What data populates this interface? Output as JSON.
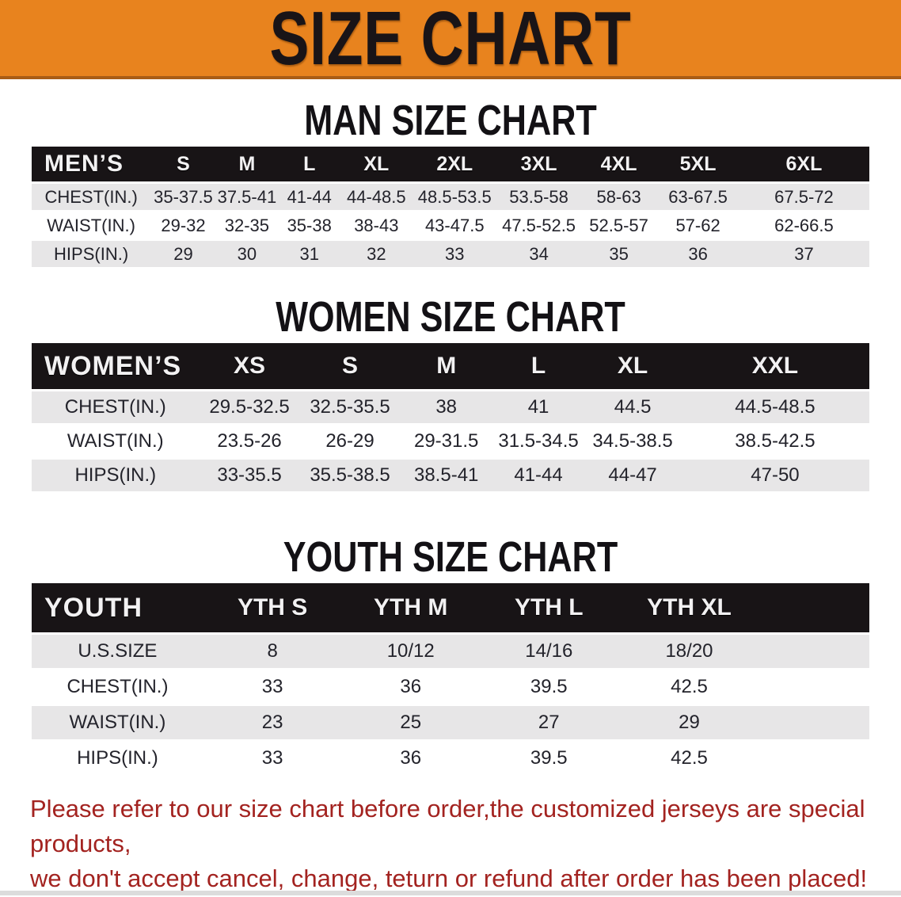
{
  "banner": {
    "title": "SIZE CHART"
  },
  "men_section": {
    "heading": "MAN SIZE CHART",
    "table": {
      "label": "MEN’S",
      "columns": [
        "S",
        "M",
        "L",
        "XL",
        "2XL",
        "3XL",
        "4XL",
        "5XL",
        "6XL"
      ],
      "rows": [
        {
          "label": "CHEST(IN.)",
          "values": [
            "35-37.5",
            "37.5-41",
            "41-44",
            "44-48.5",
            "48.5-53.5",
            "53.5-58",
            "58-63",
            "63-67.5",
            "67.5-72"
          ]
        },
        {
          "label": "WAIST(IN.)",
          "values": [
            "29-32",
            "32-35",
            "35-38",
            "38-43",
            "43-47.5",
            "47.5-52.5",
            "52.5-57",
            "57-62",
            "62-66.5"
          ]
        },
        {
          "label": "HIPS(IN.)",
          "values": [
            "29",
            "30",
            "31",
            "32",
            "33",
            "34",
            "35",
            "36",
            "37"
          ]
        }
      ]
    }
  },
  "women_section": {
    "heading": "WOMEN SIZE CHART",
    "table": {
      "label": "WOMEN’S",
      "columns": [
        "XS",
        "S",
        "M",
        "L",
        "XL",
        "XXL"
      ],
      "rows": [
        {
          "label": "CHEST(IN.)",
          "values": [
            "29.5-32.5",
            "32.5-35.5",
            "38",
            "41",
            "44.5",
            "44.5-48.5"
          ]
        },
        {
          "label": "WAIST(IN.)",
          "values": [
            "23.5-26",
            "26-29",
            "29-31.5",
            "31.5-34.5",
            "34.5-38.5",
            "38.5-42.5"
          ]
        },
        {
          "label": "HIPS(IN.)",
          "values": [
            "33-35.5",
            "35.5-38.5",
            "38.5-41",
            "41-44",
            "44-47",
            "47-50"
          ]
        }
      ]
    }
  },
  "youth_section": {
    "heading": "YOUTH SIZE CHART",
    "table": {
      "label": "YOUTH",
      "columns": [
        "YTH S",
        "YTH M",
        "YTH L",
        "YTH XL"
      ],
      "filler": true,
      "rows": [
        {
          "label": "U.S.SIZE",
          "values": [
            "8",
            "10/12",
            "14/16",
            "18/20"
          ]
        },
        {
          "label": "CHEST(IN.)",
          "values": [
            "33",
            "36",
            "39.5",
            "42.5"
          ]
        },
        {
          "label": "WAIST(IN.)",
          "values": [
            "23",
            "25",
            "27",
            "29"
          ]
        },
        {
          "label": "HIPS(IN.)",
          "values": [
            "33",
            "36",
            "39.5",
            "42.5"
          ]
        }
      ]
    }
  },
  "note": {
    "line1": "Please refer to our size chart before order,the customized jerseys are special products,",
    "line2": "we don't accept cancel, change, teturn or refund after order has been placed!"
  },
  "colors": {
    "banner-bg": "#E8831E",
    "banner-edge": "#A95C15",
    "table-header-bg": "#181416",
    "row-alt-bg": "#E7E6E7",
    "note-red": "#A32320"
  }
}
